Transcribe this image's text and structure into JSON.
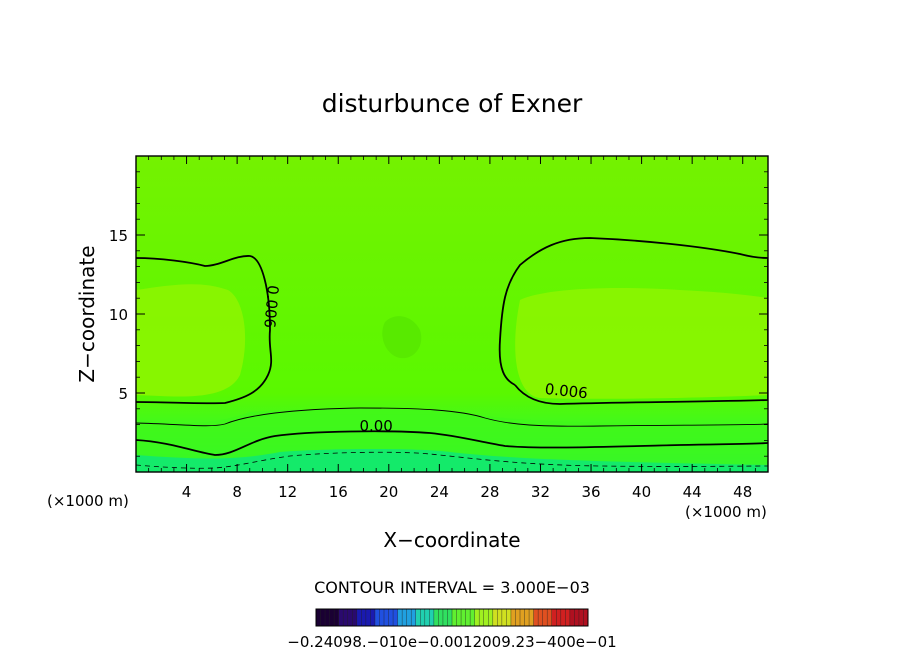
{
  "chart_data": {
    "type": "heatmap",
    "title": "disturbunce of Exner",
    "xlabel": "X−coordinate",
    "ylabel": "Z−coordinate",
    "x_unit": "(×1000 m)",
    "y_unit": "(×1000 m)",
    "xlim": [
      0,
      50
    ],
    "ylim": [
      0,
      20
    ],
    "xticks": [
      4,
      8,
      12,
      16,
      20,
      24,
      28,
      32,
      36,
      40,
      44,
      48
    ],
    "yticks": [
      5,
      10,
      15
    ],
    "contour_interval_text": "CONTOUR INTERVAL = 3.000E−03",
    "contour_labels": [
      {
        "text": "0.006",
        "x": 10.3,
        "y": 10.5
      },
      {
        "text": "0.006",
        "x": 34.0,
        "y": 4.8
      },
      {
        "text": "0.00",
        "x": 19.0,
        "y": 2.6
      }
    ],
    "colorbar_label_text": "−0.24098.−010e−0.0012009.23−400e−01",
    "colorbar_colors": [
      "#1a0033",
      "#2a0a6e",
      "#1a1ab0",
      "#2050e0",
      "#20a0e0",
      "#20d0b0",
      "#30e060",
      "#60f030",
      "#a0f020",
      "#d0e020",
      "#e0a020",
      "#e05020",
      "#d02020",
      "#b01020"
    ],
    "field_colors": {
      "high": "#a6ff00",
      "mid": "#6af000",
      "low": "#33ff33",
      "bottom": "#00e87a"
    }
  }
}
